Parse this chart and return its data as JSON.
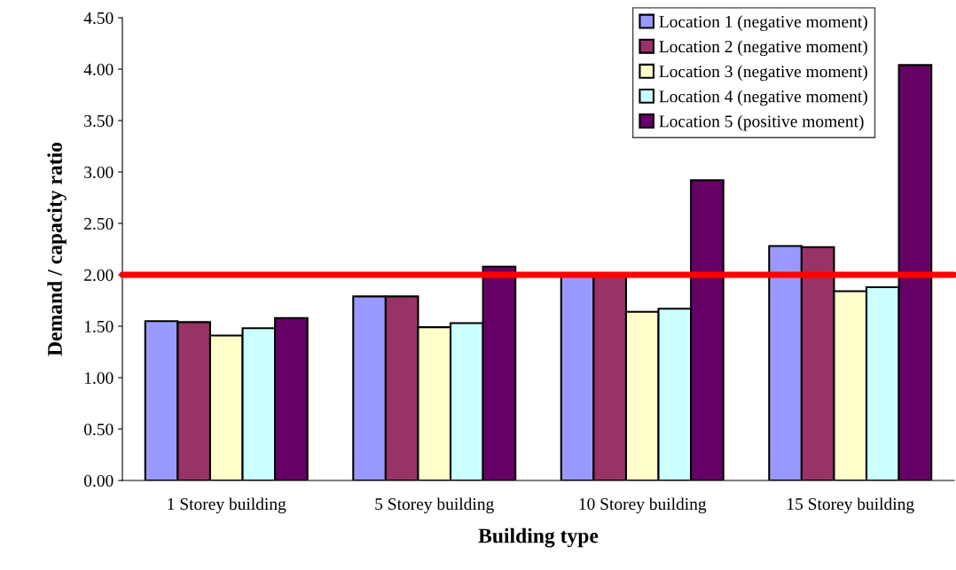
{
  "chart_data": {
    "type": "bar",
    "xlabel": "Building type",
    "ylabel": "Demand / capacity ratio",
    "categories": [
      "1 Storey building",
      "5 Storey building",
      "10 Storey building",
      "15 Storey building"
    ],
    "series": [
      {
        "name": "Location 1 (negative moment)",
        "color": "#9999ff",
        "values": [
          1.55,
          1.79,
          1.99,
          2.28
        ]
      },
      {
        "name": "Location 2 (negative moment)",
        "color": "#993366",
        "values": [
          1.54,
          1.79,
          1.99,
          2.27
        ]
      },
      {
        "name": "Location 3 (negative moment)",
        "color": "#ffffcc",
        "values": [
          1.41,
          1.49,
          1.64,
          1.84
        ]
      },
      {
        "name": "Location 4 (negative moment)",
        "color": "#ccffff",
        "values": [
          1.48,
          1.53,
          1.67,
          1.88
        ]
      },
      {
        "name": "Location 5 (positive moment)",
        "color": "#660066",
        "values": [
          1.58,
          2.08,
          2.92,
          4.04
        ]
      }
    ],
    "ylim": [
      0,
      4.5
    ],
    "yticks": [
      {
        "value": 0,
        "label": "0.00"
      },
      {
        "value": 0.5,
        "label": "0.50"
      },
      {
        "value": 1,
        "label": "1.00"
      },
      {
        "value": 1.5,
        "label": "1.50"
      },
      {
        "value": 2,
        "label": "2.00"
      },
      {
        "value": 2.5,
        "label": "2.50"
      },
      {
        "value": 3,
        "label": "3.00"
      },
      {
        "value": 3.5,
        "label": "3.50"
      },
      {
        "value": 4,
        "label": "4.00"
      },
      {
        "value": 4.5,
        "label": "4.50"
      }
    ],
    "ref_lines": [
      {
        "axis": "y",
        "value": 2.0,
        "color": "#ff0000"
      }
    ],
    "grid": false,
    "legend": "top right"
  }
}
